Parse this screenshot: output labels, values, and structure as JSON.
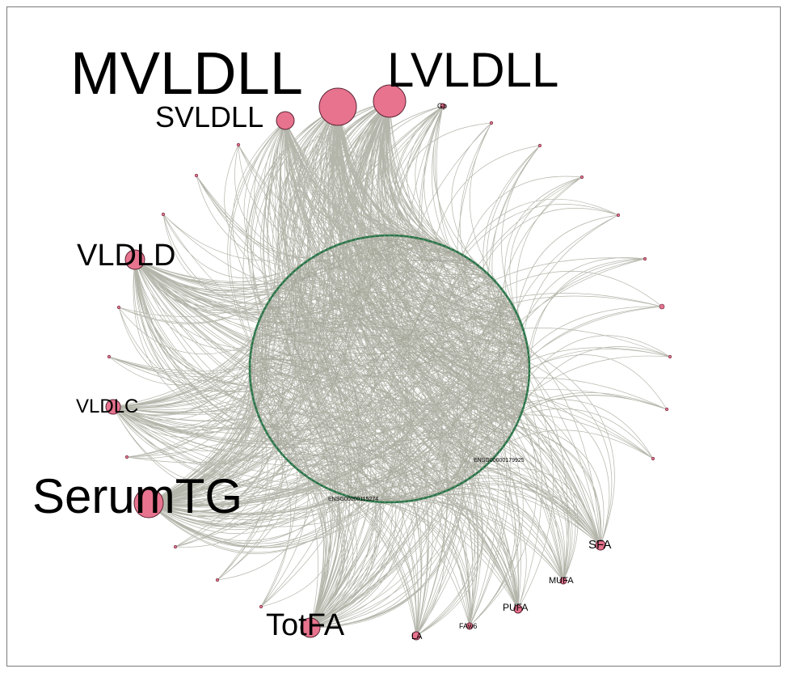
{
  "figure": {
    "colors": {
      "edge": "#9c9d8f",
      "ring_edge": "#2e6e47",
      "node_fill": "#e8738e",
      "node_stroke": "#5a2233",
      "border": "#7a7a7a"
    },
    "trait_nodes": [
      {
        "id": "MVLDLL",
        "label": "MVLDLL",
        "weight": 1.0
      },
      {
        "id": "LVLDLL",
        "label": "LVLDLL",
        "weight": 0.9
      },
      {
        "id": "SVLDLL",
        "label": "SVLDLL",
        "weight": 0.45
      },
      {
        "id": "Gp",
        "label": "Gp",
        "weight": 0.1
      },
      {
        "id": "VLDLD",
        "label": "VLDLD",
        "weight": 0.55
      },
      {
        "id": "VLDLC",
        "label": "VLDLC",
        "weight": 0.4
      },
      {
        "id": "SerumTG",
        "label": "SerumTG",
        "weight": 1.0
      },
      {
        "id": "TotFA",
        "label": "TotFA",
        "weight": 0.55
      },
      {
        "id": "LA",
        "label": "LA",
        "weight": 0.2
      },
      {
        "id": "FAw6",
        "label": "FAw6",
        "weight": 0.15
      },
      {
        "id": "PUFA",
        "label": "PUFA",
        "weight": 0.2
      },
      {
        "id": "MUFA",
        "label": "MUFA",
        "weight": 0.15
      },
      {
        "id": "SFA",
        "label": "SFA",
        "weight": 0.25
      }
    ],
    "gene_labels": [
      "ENSG00000115274",
      "ENSG00000179925"
    ]
  }
}
